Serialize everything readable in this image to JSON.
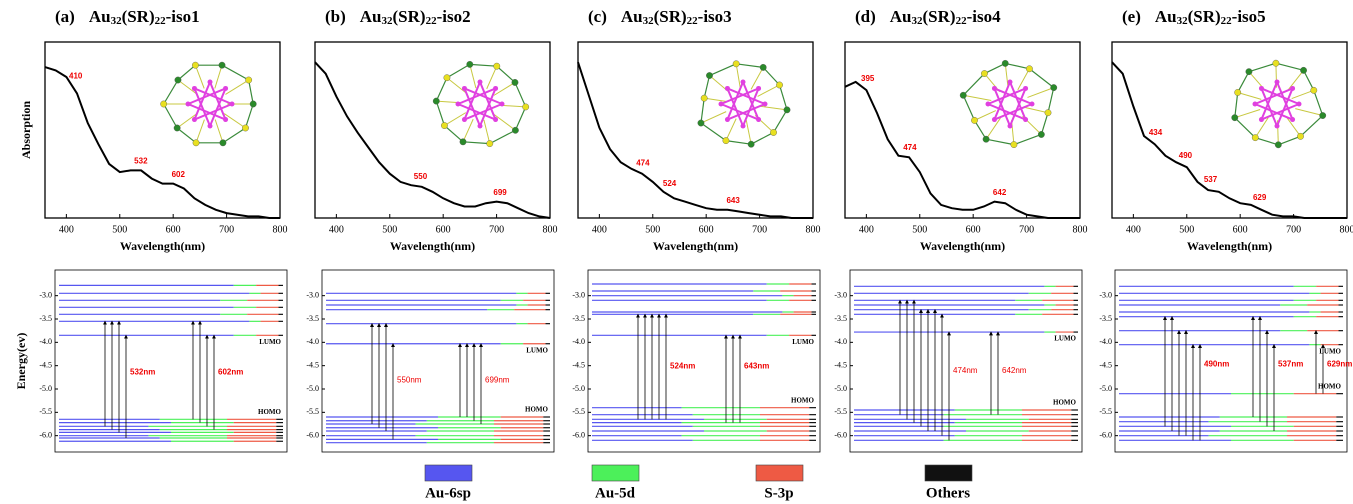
{
  "chart_data": [
    {
      "type": "line",
      "label": "(a)",
      "formula": [
        "Au",
        "32",
        "(SR)",
        "22",
        "-iso1"
      ],
      "ylabel": "Absorption",
      "xlabel": "Wavelength(nm)",
      "x": [
        360,
        380,
        400,
        420,
        440,
        460,
        480,
        500,
        520,
        540,
        560,
        580,
        600,
        620,
        640,
        660,
        680,
        700,
        720,
        740,
        760,
        780,
        800
      ],
      "values": [
        0.92,
        0.9,
        0.86,
        0.76,
        0.58,
        0.45,
        0.33,
        0.28,
        0.29,
        0.29,
        0.24,
        0.21,
        0.21,
        0.18,
        0.12,
        0.08,
        0.05,
        0.03,
        0.02,
        0.01,
        0.01,
        0,
        0
      ],
      "peaks": [
        410,
        532,
        602
      ],
      "xlim": [
        360,
        800
      ],
      "xticks": [
        400,
        500,
        600,
        700,
        800
      ],
      "ylim": [
        0,
        1
      ]
    },
    {
      "type": "line",
      "label": "(b)",
      "formula": [
        "Au",
        "32",
        "(SR)",
        "22",
        "-iso2"
      ],
      "xlabel": "Wavelength(nm)",
      "x": [
        360,
        380,
        400,
        420,
        440,
        460,
        480,
        500,
        520,
        540,
        560,
        580,
        600,
        620,
        640,
        660,
        680,
        700,
        720,
        740,
        760,
        780,
        800
      ],
      "values": [
        0.95,
        0.88,
        0.74,
        0.62,
        0.52,
        0.43,
        0.34,
        0.27,
        0.22,
        0.2,
        0.19,
        0.16,
        0.12,
        0.09,
        0.07,
        0.07,
        0.09,
        0.1,
        0.09,
        0.06,
        0.03,
        0.01,
        0
      ],
      "peaks": [
        550,
        699
      ],
      "xlim": [
        360,
        800
      ],
      "xticks": [
        400,
        500,
        600,
        700,
        800
      ],
      "ylim": [
        0,
        1
      ]
    },
    {
      "type": "line",
      "label": "(c)",
      "formula": [
        "Au",
        "32",
        "(SR)",
        "22",
        "-iso3"
      ],
      "xlabel": "Wavelength(nm)",
      "x": [
        360,
        380,
        400,
        420,
        440,
        460,
        480,
        500,
        520,
        540,
        560,
        580,
        600,
        620,
        640,
        660,
        680,
        700,
        720,
        740,
        760,
        780,
        800
      ],
      "values": [
        0.95,
        0.75,
        0.55,
        0.42,
        0.34,
        0.3,
        0.27,
        0.22,
        0.16,
        0.12,
        0.1,
        0.08,
        0.06,
        0.05,
        0.05,
        0.04,
        0.03,
        0.02,
        0.01,
        0.01,
        0,
        0,
        0
      ],
      "peaks": [
        474,
        524,
        643
      ],
      "xlim": [
        360,
        800
      ],
      "xticks": [
        400,
        500,
        600,
        700,
        800
      ],
      "ylim": [
        0,
        1
      ]
    },
    {
      "type": "line",
      "label": "(d)",
      "formula": [
        "Au",
        "32",
        "(SR)",
        "22",
        "-iso4"
      ],
      "xlabel": "Wavelength(nm)",
      "x": [
        360,
        380,
        400,
        420,
        440,
        460,
        480,
        500,
        520,
        540,
        560,
        580,
        600,
        620,
        640,
        660,
        680,
        700,
        720,
        740,
        760,
        780,
        800
      ],
      "values": [
        0.8,
        0.83,
        0.78,
        0.64,
        0.48,
        0.38,
        0.37,
        0.28,
        0.15,
        0.08,
        0.06,
        0.05,
        0.05,
        0.07,
        0.1,
        0.09,
        0.05,
        0.02,
        0.01,
        0,
        0,
        0,
        0
      ],
      "peaks": [
        395,
        474,
        642
      ],
      "xlim": [
        360,
        800
      ],
      "xticks": [
        400,
        500,
        600,
        700,
        800
      ],
      "ylim": [
        0,
        1
      ]
    },
    {
      "type": "line",
      "label": "(e)",
      "formula": [
        "Au",
        "32",
        "(SR)",
        "22",
        "-iso5"
      ],
      "xlabel": "Wavelength(nm)",
      "x": [
        360,
        380,
        400,
        420,
        440,
        460,
        480,
        500,
        520,
        540,
        560,
        580,
        600,
        620,
        640,
        660,
        680,
        700,
        720,
        740,
        760,
        780,
        800
      ],
      "values": [
        0.95,
        0.88,
        0.68,
        0.5,
        0.45,
        0.38,
        0.34,
        0.31,
        0.22,
        0.17,
        0.16,
        0.12,
        0.09,
        0.08,
        0.05,
        0.02,
        0.01,
        0.01,
        0,
        0,
        0,
        0,
        0
      ],
      "peaks": [
        434,
        490,
        537,
        629
      ],
      "xlim": [
        360,
        800
      ],
      "xticks": [
        400,
        500,
        600,
        700,
        800
      ],
      "ylim": [
        0,
        1
      ]
    },
    {
      "type": "levels",
      "ylabel": "Energy(ev)",
      "homo_label": "HOMO",
      "lumo_label": "LUMO",
      "ylim": [
        -6.35,
        -2.45
      ],
      "yticks": [
        {
          "value": -3,
          "label": "-3.0"
        },
        -3.5,
        {
          "value": -4,
          "label": "-4.0"
        },
        -4.5,
        {
          "value": -5,
          "label": "-5.0"
        },
        -5.5,
        {
          "value": -6,
          "label": "-6.0"
        }
      ],
      "unoccupied": [
        -2.78,
        -2.95,
        -3.1,
        -3.25,
        -3.4,
        -3.55,
        -3.85
      ],
      "unoccupied_composition": [
        [
          0.78,
          0.1,
          0.1,
          0.02
        ],
        [
          0.85,
          0.05,
          0.08,
          0.02
        ],
        [
          0.72,
          0.12,
          0.14,
          0.02
        ],
        [
          0.78,
          0.1,
          0.1,
          0.02
        ],
        [
          0.72,
          0.12,
          0.14,
          0.02
        ],
        [
          0.85,
          0.05,
          0.08,
          0.02
        ],
        [
          0.78,
          0.1,
          0.1,
          0.02
        ]
      ],
      "occupied": [
        -5.65,
        -5.72,
        -5.8,
        -5.87,
        -5.93,
        -6.0,
        -6.05,
        -6.12
      ],
      "occupied_composition": [
        [
          0.45,
          0.3,
          0.22,
          0.03
        ],
        [
          0.5,
          0.28,
          0.19,
          0.03
        ],
        [
          0.4,
          0.35,
          0.22,
          0.03
        ],
        [
          0.45,
          0.3,
          0.22,
          0.03
        ],
        [
          0.5,
          0.28,
          0.19,
          0.03
        ],
        [
          0.4,
          0.35,
          0.22,
          0.03
        ],
        [
          0.45,
          0.3,
          0.22,
          0.03
        ],
        [
          0.5,
          0.28,
          0.19,
          0.03
        ]
      ],
      "transitions": [
        {
          "label": "532nm",
          "from": [
            -5.8,
            -5.87,
            -5.93,
            -6.05
          ],
          "to": [
            -3.55,
            -3.55,
            -3.55,
            -3.85
          ]
        },
        {
          "label": "602nm",
          "from": [
            -5.65,
            -5.72,
            -5.8,
            -5.87
          ],
          "to": [
            -3.55,
            -3.55,
            -3.85,
            -3.85
          ]
        }
      ]
    },
    {
      "type": "levels",
      "homo_label": "HOMO",
      "lumo_label": "LUMO",
      "ylim": [
        -6.35,
        -2.45
      ],
      "yticks": [
        {
          "value": -3,
          "label": "-3.0"
        },
        -3.5,
        {
          "value": -4,
          "label": "-4.0"
        },
        -4.5,
        {
          "value": -5,
          "label": "-5.0"
        },
        -5.5,
        {
          "value": -6,
          "label": "-6.0"
        }
      ],
      "unoccupied": [
        -2.95,
        -3.1,
        -3.2,
        -3.3,
        -3.6,
        -4.03
      ],
      "unoccupied_composition": [
        [
          0.85,
          0.05,
          0.08,
          0.02
        ],
        [
          0.78,
          0.1,
          0.1,
          0.02
        ],
        [
          0.85,
          0.05,
          0.08,
          0.02
        ],
        [
          0.72,
          0.12,
          0.14,
          0.02
        ],
        [
          0.85,
          0.05,
          0.08,
          0.02
        ],
        [
          0.78,
          0.1,
          0.1,
          0.02
        ]
      ],
      "occupied": [
        -5.6,
        -5.68,
        -5.75,
        -5.83,
        -5.9,
        -6.0,
        -6.08,
        -6.15
      ],
      "occupied_composition": [
        [
          0.5,
          0.28,
          0.19,
          0.03
        ],
        [
          0.45,
          0.3,
          0.22,
          0.03
        ],
        [
          0.4,
          0.35,
          0.22,
          0.03
        ],
        [
          0.5,
          0.28,
          0.19,
          0.03
        ],
        [
          0.45,
          0.3,
          0.22,
          0.03
        ],
        [
          0.4,
          0.35,
          0.22,
          0.03
        ],
        [
          0.5,
          0.28,
          0.19,
          0.03
        ],
        [
          0.45,
          0.3,
          0.22,
          0.03
        ]
      ],
      "transitions": [
        {
          "label": "550nm",
          "from": [
            -5.75,
            -5.83,
            -5.9,
            -6.08
          ],
          "to": [
            -3.6,
            -3.6,
            -3.6,
            -4.03
          ]
        },
        {
          "label": "699nm",
          "from": [
            -5.6,
            -5.6,
            -5.68,
            -5.75
          ],
          "to": [
            -4.03,
            -4.03,
            -4.03,
            -4.03
          ]
        }
      ]
    },
    {
      "type": "levels",
      "homo_label": "HOMO",
      "lumo_label": "LUMO",
      "ylim": [
        -6.35,
        -2.45
      ],
      "yticks": [
        {
          "value": -3,
          "label": "-3.0"
        },
        -3.5,
        {
          "value": -4,
          "label": "-4.0"
        },
        -4.5,
        {
          "value": -5,
          "label": "-5.0"
        },
        -5.5,
        {
          "value": -6,
          "label": "-6.0"
        }
      ],
      "unoccupied": [
        -2.75,
        -2.9,
        -3.0,
        -3.1,
        -3.35,
        -3.4,
        -3.85
      ],
      "unoccupied_composition": [
        [
          0.78,
          0.1,
          0.1,
          0.02
        ],
        [
          0.72,
          0.12,
          0.14,
          0.02
        ],
        [
          0.85,
          0.05,
          0.08,
          0.02
        ],
        [
          0.78,
          0.1,
          0.1,
          0.02
        ],
        [
          0.85,
          0.05,
          0.08,
          0.02
        ],
        [
          0.72,
          0.12,
          0.14,
          0.02
        ],
        [
          0.78,
          0.1,
          0.1,
          0.02
        ]
      ],
      "occupied": [
        -5.4,
        -5.55,
        -5.65,
        -5.72,
        -5.8,
        -5.9,
        -6.0,
        -6.1
      ],
      "occupied_composition": [
        [
          0.4,
          0.35,
          0.22,
          0.03
        ],
        [
          0.45,
          0.3,
          0.22,
          0.03
        ],
        [
          0.5,
          0.28,
          0.19,
          0.03
        ],
        [
          0.4,
          0.35,
          0.22,
          0.03
        ],
        [
          0.45,
          0.3,
          0.22,
          0.03
        ],
        [
          0.5,
          0.28,
          0.19,
          0.03
        ],
        [
          0.4,
          0.35,
          0.22,
          0.03
        ],
        [
          0.45,
          0.3,
          0.22,
          0.03
        ]
      ],
      "transitions": [
        {
          "label": "524nm",
          "from": [
            -5.65,
            -5.65,
            -5.65,
            -5.65,
            -5.65
          ],
          "to": [
            -3.4,
            -3.4,
            -3.4,
            -3.4,
            -3.4
          ]
        },
        {
          "label": "643nm",
          "from": [
            -5.72,
            -5.72,
            -5.72
          ],
          "to": [
            -3.85,
            -3.85,
            -3.85
          ]
        }
      ]
    },
    {
      "type": "levels",
      "homo_label": "HOMO",
      "lumo_label": "LUMO",
      "ylim": [
        -6.35,
        -2.45
      ],
      "yticks": [
        {
          "value": -3,
          "label": "-3.0"
        },
        -3.5,
        {
          "value": -4,
          "label": "-4.0"
        },
        -4.5,
        {
          "value": -5,
          "label": "-5.0"
        },
        -5.5,
        {
          "value": -6,
          "label": "-6.0"
        }
      ],
      "unoccupied": [
        -2.8,
        -2.95,
        -3.1,
        -3.2,
        -3.3,
        -3.4,
        -3.78
      ],
      "unoccupied_composition": [
        [
          0.85,
          0.05,
          0.08,
          0.02
        ],
        [
          0.78,
          0.1,
          0.1,
          0.02
        ],
        [
          0.72,
          0.12,
          0.14,
          0.02
        ],
        [
          0.85,
          0.05,
          0.08,
          0.02
        ],
        [
          0.78,
          0.1,
          0.1,
          0.02
        ],
        [
          0.72,
          0.12,
          0.14,
          0.02
        ],
        [
          0.85,
          0.05,
          0.08,
          0.02
        ]
      ],
      "occupied": [
        -5.45,
        -5.55,
        -5.65,
        -5.72,
        -5.8,
        -5.9,
        -6.0,
        -6.1
      ],
      "occupied_composition": [
        [
          0.45,
          0.3,
          0.22,
          0.03
        ],
        [
          0.4,
          0.35,
          0.22,
          0.03
        ],
        [
          0.5,
          0.28,
          0.19,
          0.03
        ],
        [
          0.45,
          0.3,
          0.22,
          0.03
        ],
        [
          0.4,
          0.35,
          0.22,
          0.03
        ],
        [
          0.5,
          0.28,
          0.19,
          0.03
        ],
        [
          0.45,
          0.3,
          0.22,
          0.03
        ],
        [
          0.4,
          0.35,
          0.22,
          0.03
        ]
      ],
      "transitions": [
        {
          "label": "474nm",
          "from": [
            -5.55,
            -5.65,
            -5.72,
            -5.8,
            -5.9,
            -5.9,
            -6.0,
            -6.1
          ],
          "to": [
            -3.1,
            -3.1,
            -3.1,
            -3.3,
            -3.3,
            -3.3,
            -3.4,
            -3.78
          ]
        },
        {
          "label": "642nm",
          "from": [
            -5.55,
            -5.55
          ],
          "to": [
            -3.78,
            -3.78
          ]
        }
      ]
    },
    {
      "type": "levels",
      "homo_label": "HOMO",
      "lumo_label": "LUMO",
      "ylim": [
        -6.35,
        -2.45
      ],
      "yticks": [
        {
          "value": -3,
          "label": "-3.0"
        },
        -3.5,
        {
          "value": -4,
          "label": "-4.0"
        },
        -4.5,
        {
          "value": -5,
          "label": "-5.0"
        },
        -5.5,
        {
          "value": -6,
          "label": "-6.0"
        }
      ],
      "unoccupied": [
        -2.8,
        -2.95,
        -3.1,
        -3.2,
        -3.35,
        -3.45,
        -3.75,
        -4.05
      ],
      "unoccupied_composition": [
        [
          0.78,
          0.1,
          0.1,
          0.02
        ],
        [
          0.85,
          0.05,
          0.08,
          0.02
        ],
        [
          0.78,
          0.1,
          0.1,
          0.02
        ],
        [
          0.72,
          0.12,
          0.14,
          0.02
        ],
        [
          0.85,
          0.05,
          0.08,
          0.02
        ],
        [
          0.78,
          0.1,
          0.1,
          0.02
        ],
        [
          0.72,
          0.12,
          0.14,
          0.02
        ],
        [
          0.85,
          0.05,
          0.08,
          0.02
        ]
      ],
      "occupied": [
        -5.1,
        -5.6,
        -5.7,
        -5.8,
        -5.9,
        -6.0,
        -6.1
      ],
      "occupied_composition": [
        [
          0.5,
          0.28,
          0.19,
          0.03
        ],
        [
          0.45,
          0.3,
          0.22,
          0.03
        ],
        [
          0.4,
          0.35,
          0.22,
          0.03
        ],
        [
          0.5,
          0.28,
          0.19,
          0.03
        ],
        [
          0.45,
          0.3,
          0.22,
          0.03
        ],
        [
          0.4,
          0.35,
          0.22,
          0.03
        ],
        [
          0.5,
          0.28,
          0.19,
          0.03
        ]
      ],
      "transitions": [
        {
          "label": "490nm",
          "from": [
            -5.8,
            -5.9,
            -6.0,
            -6.0,
            -6.1,
            -6.1
          ],
          "to": [
            -3.45,
            -3.45,
            -3.75,
            -3.75,
            -4.05,
            -4.05
          ]
        },
        {
          "label": "537nm",
          "from": [
            -5.6,
            -5.7,
            -5.8,
            -5.9
          ],
          "to": [
            -3.45,
            -3.45,
            -3.75,
            -4.05
          ]
        },
        {
          "label": "629nm",
          "from": [
            -5.1,
            -5.1
          ],
          "to": [
            -3.75,
            -4.05
          ]
        }
      ]
    }
  ],
  "legend": {
    "names": [
      "Au-6sp",
      "Au-5d",
      "S-3p",
      "Others"
    ],
    "colors": [
      "#5656f0",
      "#4cf05a",
      "#ee5a44",
      "#111111"
    ]
  }
}
